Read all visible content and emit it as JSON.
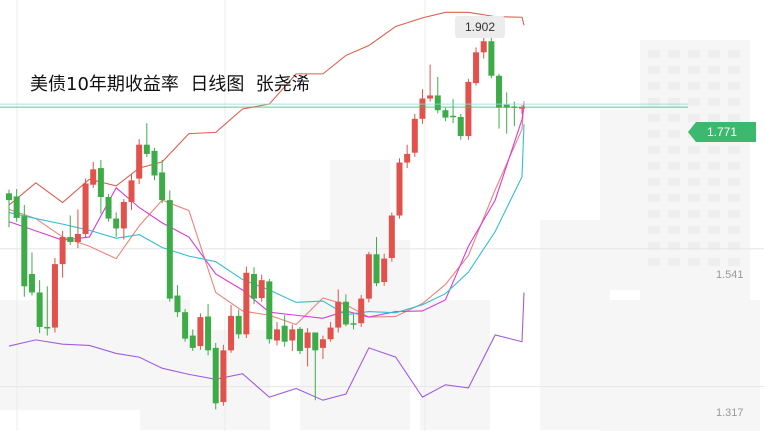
{
  "title": "美债10年期收益率  日线图  张尧浠",
  "chart_data": {
    "type": "candlestick",
    "ylim": [
      1.245,
      1.945
    ],
    "y_ticks": [
      "1.541",
      "1.317"
    ],
    "current_price": "1.771",
    "peak_label": "1.902",
    "colors": {
      "up": "#e0524b",
      "down": "#3eab49",
      "upper_band": "#d9604e",
      "lower_band": "#a25ce0",
      "ma_fast": "#e8857a",
      "ma_mid": "#d63dd8",
      "ma_slow": "#33bdd4",
      "price_line": "#3cb96e"
    },
    "candles": [
      [
        1.631,
        1.637,
        1.62,
        1.576
      ],
      [
        1.626,
        1.638,
        1.591,
        1.585
      ],
      [
        1.594,
        1.612,
        1.48,
        1.463
      ],
      [
        1.5,
        1.535,
        1.47,
        1.465
      ],
      [
        1.47,
        1.49,
        1.414,
        1.404
      ],
      [
        1.414,
        1.48,
        1.412,
        1.4
      ],
      [
        1.413,
        1.526,
        1.516,
        1.405
      ],
      [
        1.516,
        1.57,
        1.56,
        1.494
      ],
      [
        1.56,
        1.595,
        1.552,
        1.547
      ],
      [
        1.552,
        1.605,
        1.565,
        1.542
      ],
      [
        1.565,
        1.655,
        1.647,
        1.56
      ],
      [
        1.645,
        1.682,
        1.67,
        1.64
      ],
      [
        1.672,
        1.685,
        1.625,
        1.598
      ],
      [
        1.625,
        1.63,
        1.59,
        1.585
      ],
      [
        1.59,
        1.6,
        1.574,
        1.56
      ],
      [
        1.574,
        1.622,
        1.617,
        1.556
      ],
      [
        1.617,
        1.662,
        1.652,
        1.604
      ],
      [
        1.655,
        1.719,
        1.71,
        1.646
      ],
      [
        1.71,
        1.745,
        1.695,
        1.69
      ],
      [
        1.7,
        1.705,
        1.66,
        1.652
      ],
      [
        1.665,
        1.685,
        1.62,
        1.615
      ],
      [
        1.62,
        1.636,
        1.46,
        1.455
      ],
      [
        1.465,
        1.482,
        1.438,
        1.43
      ],
      [
        1.438,
        1.443,
        1.395,
        1.39
      ],
      [
        1.4,
        1.41,
        1.38,
        1.375
      ],
      [
        1.383,
        1.436,
        1.43,
        1.377
      ],
      [
        1.431,
        1.451,
        1.376,
        1.368
      ],
      [
        1.38,
        1.388,
        1.29,
        1.28
      ],
      [
        1.292,
        1.385,
        1.376,
        1.286
      ],
      [
        1.376,
        1.45,
        1.432,
        1.372
      ],
      [
        1.432,
        1.442,
        1.402,
        1.395
      ],
      [
        1.402,
        1.512,
        1.502,
        1.396
      ],
      [
        1.5,
        1.511,
        1.46,
        1.451
      ],
      [
        1.461,
        1.499,
        1.49,
        1.455
      ],
      [
        1.488,
        1.492,
        1.394,
        1.387
      ],
      [
        1.392,
        1.422,
        1.41,
        1.384
      ],
      [
        1.416,
        1.433,
        1.39,
        1.382
      ],
      [
        1.392,
        1.418,
        1.41,
        1.375
      ],
      [
        1.411,
        1.414,
        1.375,
        1.37
      ],
      [
        1.38,
        1.412,
        1.405,
        1.35
      ],
      [
        1.405,
        1.4,
        1.376,
        1.295
      ],
      [
        1.38,
        1.4,
        1.394,
        1.362
      ],
      [
        1.394,
        1.422,
        1.413,
        1.39
      ],
      [
        1.413,
        1.475,
        1.455,
        1.405
      ],
      [
        1.455,
        1.467,
        1.418,
        1.415
      ],
      [
        1.42,
        1.435,
        1.418,
        1.41
      ],
      [
        1.42,
        1.466,
        1.46,
        1.414
      ],
      [
        1.46,
        1.536,
        1.532,
        1.454
      ],
      [
        1.532,
        1.56,
        1.485,
        1.48
      ],
      [
        1.487,
        1.533,
        1.525,
        1.481
      ],
      [
        1.526,
        1.6,
        1.595,
        1.52
      ],
      [
        1.595,
        1.688,
        1.681,
        1.59
      ],
      [
        1.681,
        1.71,
        1.695,
        1.672
      ],
      [
        1.697,
        1.76,
        1.752,
        1.69
      ],
      [
        1.752,
        1.8,
        1.785,
        1.744
      ],
      [
        1.785,
        1.84,
        1.79,
        1.78
      ],
      [
        1.79,
        1.82,
        1.766,
        1.761
      ],
      [
        1.766,
        1.77,
        1.754,
        1.748
      ],
      [
        1.757,
        1.784,
        1.755,
        1.745
      ],
      [
        1.755,
        1.76,
        1.724,
        1.718
      ],
      [
        1.724,
        1.817,
        1.812,
        1.718
      ],
      [
        1.81,
        1.868,
        1.86,
        1.806
      ],
      [
        1.86,
        1.9,
        1.878,
        1.85
      ],
      [
        1.878,
        1.888,
        1.822,
        1.818
      ],
      [
        1.822,
        1.825,
        1.77,
        1.736
      ],
      [
        1.775,
        1.795,
        1.77,
        1.728
      ],
      [
        1.772,
        1.78,
        1.77,
        1.74
      ],
      [
        1.77,
        1.774,
        1.771,
        1.76
      ]
    ],
    "bands": {
      "upper": [
        [
          1.612,
          1.648
        ],
        [
          1.616,
          1.654
        ],
        [
          1.643,
          1.672
        ],
        [
          1.682,
          1.728
        ],
        [
          1.73,
          1.768
        ],
        [
          1.776,
          1.825
        ],
        [
          1.825,
          1.855
        ],
        [
          1.871,
          1.902
        ],
        [
          1.916,
          1.925
        ],
        [
          1.925,
          1.918
        ],
        [
          1.917,
          1.904
        ]
      ],
      "lower": [
        [
          1.383,
          1.393
        ],
        [
          1.386,
          1.384
        ],
        [
          1.371,
          1.365
        ],
        [
          1.347,
          1.337
        ],
        [
          1.329,
          1.338
        ],
        [
          1.3,
          1.314
        ],
        [
          1.295,
          1.305
        ],
        [
          1.38,
          1.365
        ],
        [
          1.3,
          1.32
        ],
        [
          1.315,
          1.401
        ],
        [
          1.39,
          1.47
        ]
      ],
      "ma_fast": [
        [
          1.605,
          1.59
        ],
        [
          1.56,
          1.545
        ],
        [
          1.525,
          1.578
        ],
        [
          1.62,
          1.603
        ],
        [
          1.47,
          1.44
        ],
        [
          1.433,
          1.418
        ],
        [
          1.461,
          1.45
        ],
        [
          1.43,
          1.431
        ],
        [
          1.452,
          1.483
        ],
        [
          1.53,
          1.637
        ],
        [
          1.735,
          1.781
        ]
      ],
      "ma_mid": [
        [
          1.585,
          1.57
        ],
        [
          1.555,
          1.56
        ],
        [
          1.64,
          1.608
        ],
        [
          1.583,
          1.56
        ],
        [
          1.5,
          1.474
        ],
        [
          1.438,
          1.433
        ],
        [
          1.428,
          1.44
        ],
        [
          1.43,
          1.439
        ],
        [
          1.44,
          1.458
        ],
        [
          1.545,
          1.62
        ],
        [
          1.751,
          1.776
        ]
      ],
      "ma_slow": [
        [
          1.6,
          1.59
        ],
        [
          1.581,
          1.571
        ],
        [
          1.558,
          1.564
        ],
        [
          1.543,
          1.529
        ],
        [
          1.52,
          1.491
        ],
        [
          1.474,
          1.454
        ],
        [
          1.456,
          1.434
        ],
        [
          1.439,
          1.437
        ],
        [
          1.45,
          1.468
        ],
        [
          1.503,
          1.569
        ],
        [
          1.658,
          1.744
        ]
      ]
    }
  }
}
